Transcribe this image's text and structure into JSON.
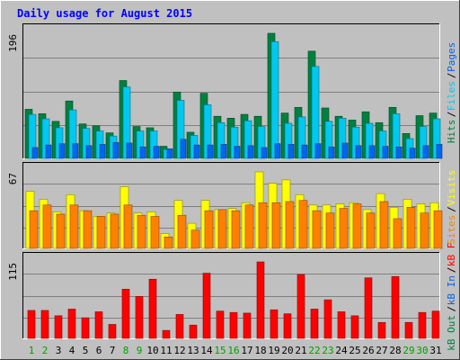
{
  "chart_data": [
    {
      "type": "bar",
      "title": "Daily usage for August 2015",
      "categories": [
        "1",
        "2",
        "3",
        "4",
        "5",
        "6",
        "7",
        "8",
        "9",
        "10",
        "11",
        "12",
        "13",
        "14",
        "15",
        "16",
        "17",
        "18",
        "19",
        "20",
        "21",
        "22",
        "23",
        "24",
        "25",
        "26",
        "27",
        "28",
        "29",
        "30",
        "31"
      ],
      "weekend_days": [
        "1",
        "2",
        "8",
        "9",
        "15",
        "16",
        "22",
        "23",
        "29",
        "30"
      ],
      "ylabel": "196",
      "ymax": 196,
      "legend": [
        {
          "name": "Pages",
          "color": "#0066F0"
        },
        {
          "name": "Files",
          "color": "#00C8F0"
        },
        {
          "name": "Hits",
          "color": "#008040"
        }
      ],
      "series": [
        {
          "name": "Hits",
          "color": "#008040",
          "values": [
            77,
            70,
            58,
            90,
            54,
            51,
            40,
            122,
            50,
            48,
            19,
            104,
            41,
            102,
            66,
            63,
            69,
            66,
            196,
            71,
            80,
            168,
            79,
            66,
            60,
            73,
            56,
            80,
            39,
            67,
            71
          ]
        },
        {
          "name": "Files",
          "color": "#00C8F0",
          "values": [
            69,
            62,
            48,
            76,
            47,
            43,
            35,
            112,
            43,
            43,
            14,
            91,
            36,
            84,
            56,
            49,
            59,
            50,
            183,
            55,
            65,
            144,
            58,
            63,
            49,
            55,
            43,
            70,
            31,
            50,
            62
          ]
        },
        {
          "name": "Pages",
          "color": "#0066F0",
          "values": [
            17,
            21,
            23,
            23,
            20,
            22,
            25,
            24,
            18,
            19,
            15,
            30,
            21,
            21,
            22,
            19,
            20,
            17,
            23,
            22,
            21,
            23,
            18,
            24,
            20,
            20,
            19,
            18,
            16,
            20,
            22
          ]
        }
      ]
    },
    {
      "type": "bar",
      "ylabel": "67",
      "ymax": 67,
      "legend": [
        {
          "name": "Visits",
          "color": "#FFFF00"
        },
        {
          "name": "Sites",
          "color": "#FF8000"
        }
      ],
      "series": [
        {
          "name": "Visits",
          "color": "#FFFF00",
          "values": [
            50,
            43,
            32,
            47,
            33,
            28,
            31,
            54,
            31,
            32,
            13,
            42,
            22,
            42,
            34,
            35,
            40,
            67,
            57,
            60,
            47,
            38,
            38,
            39,
            40,
            34,
            48,
            36,
            43,
            39,
            40
          ]
        },
        {
          "name": "Sites",
          "color": "#FF8000",
          "values": [
            33,
            38,
            30,
            38,
            33,
            28,
            30,
            38,
            29,
            28,
            10,
            29,
            16,
            33,
            34,
            33,
            38,
            40,
            40,
            41,
            42,
            33,
            31,
            35,
            39,
            31,
            41,
            26,
            36,
            31,
            33
          ]
        }
      ]
    },
    {
      "type": "bar",
      "ylabel": "115",
      "ymax": 115,
      "legend": [
        {
          "name": "kB F",
          "color": "#FF0000"
        },
        {
          "name": "kB In",
          "color": "#0066F0"
        },
        {
          "name": "kB Out",
          "color": "#008040"
        }
      ],
      "series": [
        {
          "name": "kB F",
          "color": "#FF0000",
          "values": [
            42,
            42,
            34,
            44,
            31,
            40,
            21,
            74,
            63,
            89,
            12,
            36,
            20,
            98,
            41,
            39,
            38,
            115,
            43,
            37,
            96,
            44,
            58,
            40,
            34,
            91,
            24,
            93,
            24,
            39,
            41
          ]
        }
      ]
    }
  ]
}
